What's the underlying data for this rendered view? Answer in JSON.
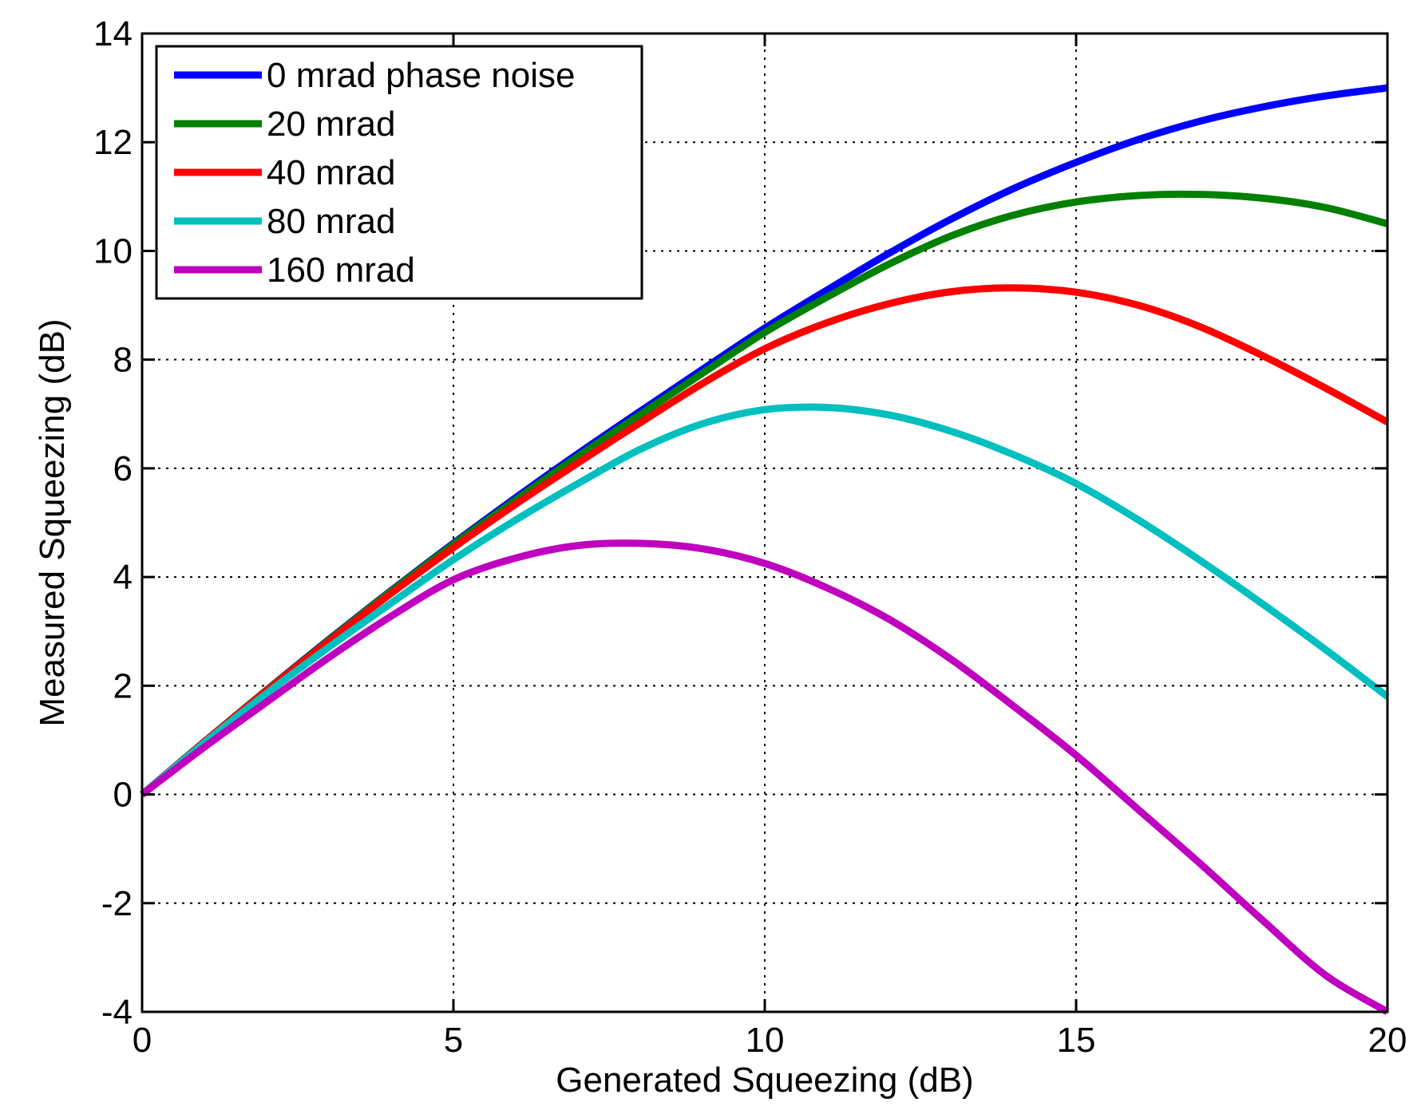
{
  "chart_data": {
    "type": "line",
    "title": "",
    "xlabel": "Generated Squeezing (dB)",
    "ylabel": "Measured Squeezing (dB)",
    "xlim": [
      0,
      20
    ],
    "ylim": [
      -4,
      14
    ],
    "xticks": [
      0,
      5,
      10,
      15,
      20
    ],
    "yticks": [
      -4,
      -2,
      0,
      2,
      4,
      6,
      8,
      10,
      12,
      14
    ],
    "xtick_labels": [
      "0",
      "5",
      "10",
      "15",
      "20"
    ],
    "ytick_labels": [
      "-4",
      "-2",
      "0",
      "2",
      "4",
      "6",
      "8",
      "10",
      "12",
      "14"
    ],
    "grid": true,
    "grid_style": "dotted",
    "legend_position": "top-left",
    "x": [
      0,
      1,
      2,
      3,
      4,
      5,
      6,
      7,
      8,
      9,
      10,
      11,
      12,
      13,
      14,
      15,
      16,
      17,
      18,
      19,
      20
    ],
    "series": [
      {
        "name": "0 mrad phase noise",
        "color": "#0000ff",
        "values": [
          0,
          0.97,
          1.92,
          2.85,
          3.75,
          4.62,
          5.46,
          6.27,
          7.05,
          7.82,
          8.58,
          9.28,
          9.96,
          10.59,
          11.15,
          11.63,
          12.05,
          12.39,
          12.65,
          12.85,
          13.0
        ]
      },
      {
        "name": "20 mrad",
        "color": "#008000",
        "values": [
          0,
          0.97,
          1.92,
          2.84,
          3.74,
          4.6,
          5.42,
          6.22,
          6.99,
          7.75,
          8.5,
          9.15,
          9.76,
          10.28,
          10.66,
          10.9,
          11.02,
          11.04,
          10.97,
          10.8,
          10.5
        ]
      },
      {
        "name": "40 mrad",
        "color": "#ff0000",
        "values": [
          0,
          0.97,
          1.91,
          2.82,
          3.7,
          4.54,
          5.34,
          6.1,
          6.84,
          7.56,
          8.2,
          8.68,
          9.03,
          9.25,
          9.32,
          9.24,
          9.0,
          8.6,
          8.07,
          7.48,
          6.85
        ]
      },
      {
        "name": "80 mrad",
        "color": "#00bfbf",
        "values": [
          0,
          0.95,
          1.86,
          2.71,
          3.52,
          4.32,
          5.05,
          5.72,
          6.35,
          6.82,
          7.08,
          7.12,
          6.98,
          6.68,
          6.25,
          5.72,
          5.05,
          4.3,
          3.5,
          2.67,
          1.8
        ]
      },
      {
        "name": "160 mrad",
        "color": "#bf00bf",
        "values": [
          0,
          0.87,
          1.7,
          2.52,
          3.28,
          3.95,
          4.35,
          4.58,
          4.62,
          4.52,
          4.25,
          3.8,
          3.22,
          2.48,
          1.62,
          0.72,
          -0.28,
          -1.28,
          -2.32,
          -3.32,
          -4.0
        ]
      }
    ]
  }
}
